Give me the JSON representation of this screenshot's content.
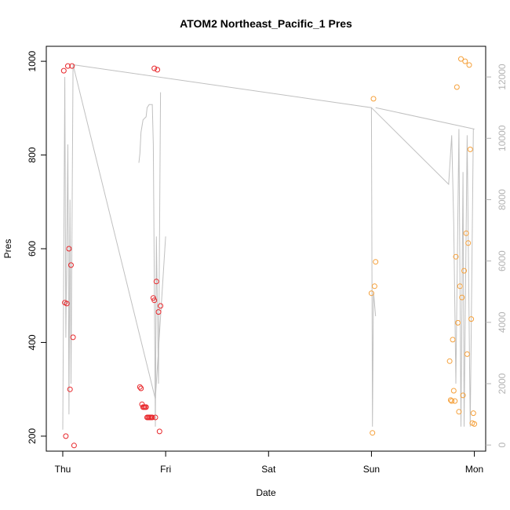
{
  "chart_data": {
    "type": "scatter",
    "title": "ATOM2 Northeast_Pacific_1 Pres",
    "xlabel": "Date",
    "ylabel": "Pres",
    "x_ticks": [
      {
        "label": "Thu",
        "day": 0
      },
      {
        "label": "Fri",
        "day": 1
      },
      {
        "label": "Sat",
        "day": 2
      },
      {
        "label": "Sun",
        "day": 3
      },
      {
        "label": "Mon",
        "day": 4
      }
    ],
    "x_range_days": [
      -0.16,
      4.11
    ],
    "ylim": [
      168,
      1032
    ],
    "y_ticks": [
      200,
      400,
      600,
      800,
      1000
    ],
    "y2_range": [
      -200,
      13000
    ],
    "y2_ticks": [
      0,
      2000,
      4000,
      6000,
      8000,
      10000,
      12000
    ],
    "grid": false,
    "legend": "none",
    "colors": {
      "series_a": "#e8262a",
      "series_b": "#f5a03a",
      "line": "#c0c0c0",
      "right_axis": "#b3b3b3"
    },
    "series": [
      {
        "color": "#e8262a",
        "points": [
          [
            0.01,
            980
          ],
          [
            0.02,
            485
          ],
          [
            0.03,
            200
          ],
          [
            0.04,
            483
          ],
          [
            0.05,
            990
          ],
          [
            0.06,
            600
          ],
          [
            0.07,
            300
          ],
          [
            0.08,
            565
          ],
          [
            0.09,
            990
          ],
          [
            0.1,
            411
          ],
          [
            0.11,
            180
          ],
          [
            0.75,
            305
          ],
          [
            0.76,
            302
          ],
          [
            0.77,
            268
          ],
          [
            0.78,
            262
          ],
          [
            0.79,
            262
          ],
          [
            0.8,
            262
          ],
          [
            0.81,
            262
          ],
          [
            0.82,
            240
          ],
          [
            0.83,
            240
          ],
          [
            0.84,
            240
          ],
          [
            0.85,
            240
          ],
          [
            0.86,
            240
          ],
          [
            0.87,
            240
          ],
          [
            0.88,
            495
          ],
          [
            0.89,
            490
          ],
          [
            0.9,
            240
          ],
          [
            0.91,
            530
          ],
          [
            0.93,
            465
          ],
          [
            0.94,
            210
          ],
          [
            0.95,
            478
          ],
          [
            0.92,
            982
          ],
          [
            0.89,
            985
          ]
        ]
      },
      {
        "color": "#f5a03a",
        "points": [
          [
            3.0,
            505
          ],
          [
            3.01,
            207
          ],
          [
            3.02,
            920
          ],
          [
            3.03,
            520
          ],
          [
            3.04,
            572
          ],
          [
            3.76,
            360
          ],
          [
            3.77,
            277
          ],
          [
            3.78,
            275
          ],
          [
            3.79,
            406
          ],
          [
            3.8,
            297
          ],
          [
            3.81,
            275
          ],
          [
            3.82,
            583
          ],
          [
            3.83,
            945
          ],
          [
            3.84,
            442
          ],
          [
            3.85,
            252
          ],
          [
            3.86,
            520
          ],
          [
            3.87,
            1005
          ],
          [
            3.88,
            496
          ],
          [
            3.89,
            287
          ],
          [
            3.9,
            553
          ],
          [
            3.91,
            1000
          ],
          [
            3.92,
            633
          ],
          [
            3.93,
            375
          ],
          [
            3.94,
            612
          ],
          [
            3.95,
            992
          ],
          [
            3.96,
            812
          ],
          [
            3.97,
            450
          ],
          [
            3.98,
            228
          ],
          [
            3.99,
            249
          ],
          [
            4.0,
            226
          ]
        ]
      }
    ],
    "secondary_line": {
      "color": "#c0c0c0",
      "segments": [
        [
          [
            0.0,
            500
          ],
          [
            0.02,
            12000
          ],
          [
            0.03,
            3500
          ],
          [
            0.05,
            9800
          ],
          [
            0.06,
            1000
          ],
          [
            0.07,
            8000
          ],
          [
            0.08,
            2000
          ],
          [
            0.1,
            12400
          ],
          [
            0.9,
            1500
          ],
          [
            1.0,
            6800
          ]
        ],
        [
          [
            0.74,
            9200
          ],
          [
            0.75,
            9500
          ],
          [
            0.76,
            10200
          ],
          [
            0.78,
            10600
          ],
          [
            0.81,
            10700
          ],
          [
            0.82,
            11000
          ],
          [
            0.84,
            11100
          ],
          [
            0.87,
            11100
          ],
          [
            0.88,
            9800
          ],
          [
            0.9,
            600
          ],
          [
            0.91,
            6800
          ],
          [
            0.93,
            2000
          ],
          [
            0.95,
            11500
          ]
        ],
        [
          [
            0.1,
            12400
          ],
          [
            3.0,
            11000
          ],
          [
            3.01,
            600
          ],
          [
            3.02,
            5000
          ],
          [
            3.04,
            4200
          ]
        ],
        [
          [
            3.0,
            11000
          ],
          [
            3.75,
            8500
          ],
          [
            3.78,
            10100
          ],
          [
            3.8,
            7200
          ],
          [
            3.82,
            2000
          ],
          [
            3.85,
            10300
          ],
          [
            3.87,
            600
          ],
          [
            3.89,
            8900
          ],
          [
            3.9,
            600
          ],
          [
            3.93,
            10100
          ],
          [
            3.96,
            600
          ],
          [
            3.99,
            10300
          ],
          [
            4.0,
            10300
          ],
          [
            3.04,
            11000
          ]
        ]
      ]
    }
  }
}
